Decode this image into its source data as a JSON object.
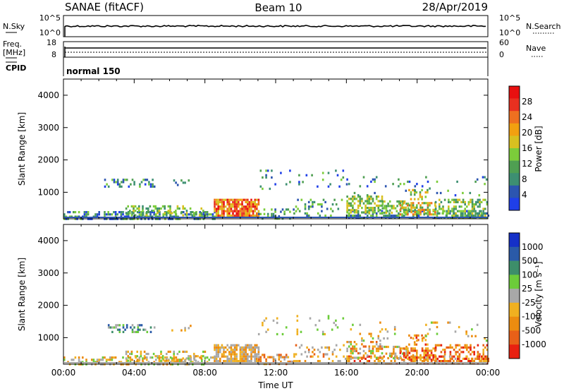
{
  "header": {
    "station": "SANAE (fitACF)",
    "beam": "Beam 10",
    "date": "28/Apr/2019"
  },
  "status_panels": {
    "nsky_label": "N.Sky",
    "nsky_ticks": [
      "10^5",
      "10^0"
    ],
    "nsearch_label": "N.Search",
    "nsearch_ticks": [
      "10^5",
      "10^0"
    ],
    "freq_label": "Freq.",
    "freq_unit": "[MHz]",
    "freq_ticks": [
      "18",
      "8"
    ],
    "nave_label": "Nave",
    "nave_ticks": [
      "60",
      "0"
    ],
    "cpid_label": "CPID",
    "cpid_value": "normal 150"
  },
  "colors": {
    "power": [
      "#1f3fe8",
      "#2c55b0",
      "#3d8f72",
      "#4f9f52",
      "#7ccc3a",
      "#d8c020",
      "#f2a010",
      "#ee7020",
      "#e83020",
      "#e81010"
    ],
    "velocity": [
      "#1530c8",
      "#2a5aa8",
      "#3d8e6a",
      "#6ccc3a",
      "#a8a8a8",
      "#f0b020",
      "#ec8c10",
      "#e86018",
      "#e82010"
    ]
  },
  "chart_data": [
    {
      "type": "heatmap",
      "name": "power",
      "xlabel": "",
      "ylabel": "Slant Range [km]",
      "xlim": [
        "00:00",
        "24:00"
      ],
      "ylim": [
        180,
        4500
      ],
      "yticks": [
        "4000",
        "3000",
        "2000",
        "1000"
      ],
      "colorbar_label": "Power [dB]",
      "colorbar_ticks": [
        "28",
        "24",
        "20",
        "16",
        "12",
        "8",
        "4"
      ],
      "regions": [
        {
          "t0": 0.0,
          "t1": 8.5,
          "r0": 180,
          "r1": 420,
          "dens": 0.55,
          "cmin": 0,
          "cmax": 4
        },
        {
          "t0": 3.5,
          "t1": 8.0,
          "r0": 300,
          "r1": 600,
          "dens": 0.35,
          "cmin": 2,
          "cmax": 5
        },
        {
          "t0": 2.3,
          "t1": 5.2,
          "r0": 1150,
          "r1": 1420,
          "dens": 0.3,
          "cmin": 0,
          "cmax": 4
        },
        {
          "t0": 6.0,
          "t1": 7.2,
          "r0": 1200,
          "r1": 1400,
          "dens": 0.2,
          "cmin": 1,
          "cmax": 3
        },
        {
          "t0": 8.5,
          "t1": 11.0,
          "r0": 300,
          "r1": 800,
          "dens": 0.85,
          "cmin": 5,
          "cmax": 9
        },
        {
          "t0": 11.0,
          "t1": 13.0,
          "r0": 200,
          "r1": 500,
          "dens": 0.3,
          "cmin": 1,
          "cmax": 4
        },
        {
          "t0": 11.0,
          "t1": 16.0,
          "r0": 1100,
          "r1": 1700,
          "dens": 0.08,
          "cmin": 0,
          "cmax": 4
        },
        {
          "t0": 13.0,
          "t1": 16.0,
          "r0": 300,
          "r1": 800,
          "dens": 0.2,
          "cmin": 1,
          "cmax": 4
        },
        {
          "t0": 16.0,
          "t1": 24.0,
          "r0": 200,
          "r1": 450,
          "dens": 0.45,
          "cmin": 0,
          "cmax": 4
        },
        {
          "t0": 16.0,
          "t1": 18.0,
          "r0": 400,
          "r1": 900,
          "dens": 0.55,
          "cmin": 3,
          "cmax": 5
        },
        {
          "t0": 18.0,
          "t1": 19.5,
          "r0": 350,
          "r1": 750,
          "dens": 0.4,
          "cmin": 3,
          "cmax": 5
        },
        {
          "t0": 19.0,
          "t1": 21.0,
          "r0": 300,
          "r1": 700,
          "dens": 0.6,
          "cmin": 3,
          "cmax": 7
        },
        {
          "t0": 19.5,
          "t1": 20.6,
          "r0": 800,
          "r1": 1100,
          "dens": 0.35,
          "cmin": 3,
          "cmax": 6
        },
        {
          "t0": 21.0,
          "t1": 24.0,
          "r0": 200,
          "r1": 800,
          "dens": 0.45,
          "cmin": 2,
          "cmax": 5
        },
        {
          "t0": 16.0,
          "t1": 24.0,
          "r0": 900,
          "r1": 1500,
          "dens": 0.05,
          "cmin": 0,
          "cmax": 4
        }
      ]
    },
    {
      "type": "heatmap",
      "name": "velocity",
      "xlabel": "Time UT",
      "ylabel": "Slant Range [km]",
      "xticks": [
        "00:00",
        "04:00",
        "08:00",
        "12:00",
        "16:00",
        "20:00",
        "00:00"
      ],
      "ylim": [
        180,
        4500
      ],
      "yticks": [
        "4000",
        "3000",
        "2000",
        "1000"
      ],
      "colorbar_label": "Velocity [m s⁻¹]",
      "colorbar_ticks": [
        "1000",
        "500",
        "100",
        "25",
        "-25",
        "-100",
        "-500",
        "-1000"
      ],
      "regions": [
        {
          "t0": 0.0,
          "t1": 8.5,
          "r0": 180,
          "r1": 420,
          "dens": 0.45,
          "cmin": 3,
          "cmax": 6
        },
        {
          "t0": 3.5,
          "t1": 8.0,
          "r0": 300,
          "r1": 600,
          "dens": 0.3,
          "cmin": 3,
          "cmax": 6
        },
        {
          "t0": 2.3,
          "t1": 5.2,
          "r0": 1150,
          "r1": 1420,
          "dens": 0.3,
          "cmin": 1,
          "cmax": 4
        },
        {
          "t0": 6.0,
          "t1": 7.2,
          "r0": 1200,
          "r1": 1400,
          "dens": 0.2,
          "cmin": 4,
          "cmax": 6
        },
        {
          "t0": 8.5,
          "t1": 11.0,
          "r0": 300,
          "r1": 800,
          "dens": 0.8,
          "cmin": 4,
          "cmax": 6
        },
        {
          "t0": 11.0,
          "t1": 13.0,
          "r0": 200,
          "r1": 500,
          "dens": 0.3,
          "cmin": 4,
          "cmax": 7
        },
        {
          "t0": 11.0,
          "t1": 16.0,
          "r0": 1100,
          "r1": 1700,
          "dens": 0.08,
          "cmin": 3,
          "cmax": 5
        },
        {
          "t0": 13.0,
          "t1": 16.0,
          "r0": 300,
          "r1": 800,
          "dens": 0.2,
          "cmin": 4,
          "cmax": 7
        },
        {
          "t0": 16.0,
          "t1": 24.0,
          "r0": 200,
          "r1": 450,
          "dens": 0.4,
          "cmin": 4,
          "cmax": 8
        },
        {
          "t0": 16.0,
          "t1": 18.0,
          "r0": 400,
          "r1": 900,
          "dens": 0.5,
          "cmin": 3,
          "cmax": 7
        },
        {
          "t0": 18.0,
          "t1": 19.5,
          "r0": 350,
          "r1": 750,
          "dens": 0.4,
          "cmin": 3,
          "cmax": 6
        },
        {
          "t0": 19.0,
          "t1": 21.0,
          "r0": 300,
          "r1": 700,
          "dens": 0.6,
          "cmin": 5,
          "cmax": 8
        },
        {
          "t0": 19.5,
          "t1": 20.6,
          "r0": 800,
          "r1": 1100,
          "dens": 0.35,
          "cmin": 5,
          "cmax": 8
        },
        {
          "t0": 21.0,
          "t1": 24.0,
          "r0": 200,
          "r1": 800,
          "dens": 0.45,
          "cmin": 5,
          "cmax": 8
        },
        {
          "t0": 16.0,
          "t1": 24.0,
          "r0": 900,
          "r1": 1500,
          "dens": 0.05,
          "cmin": 3,
          "cmax": 6
        }
      ]
    }
  ]
}
